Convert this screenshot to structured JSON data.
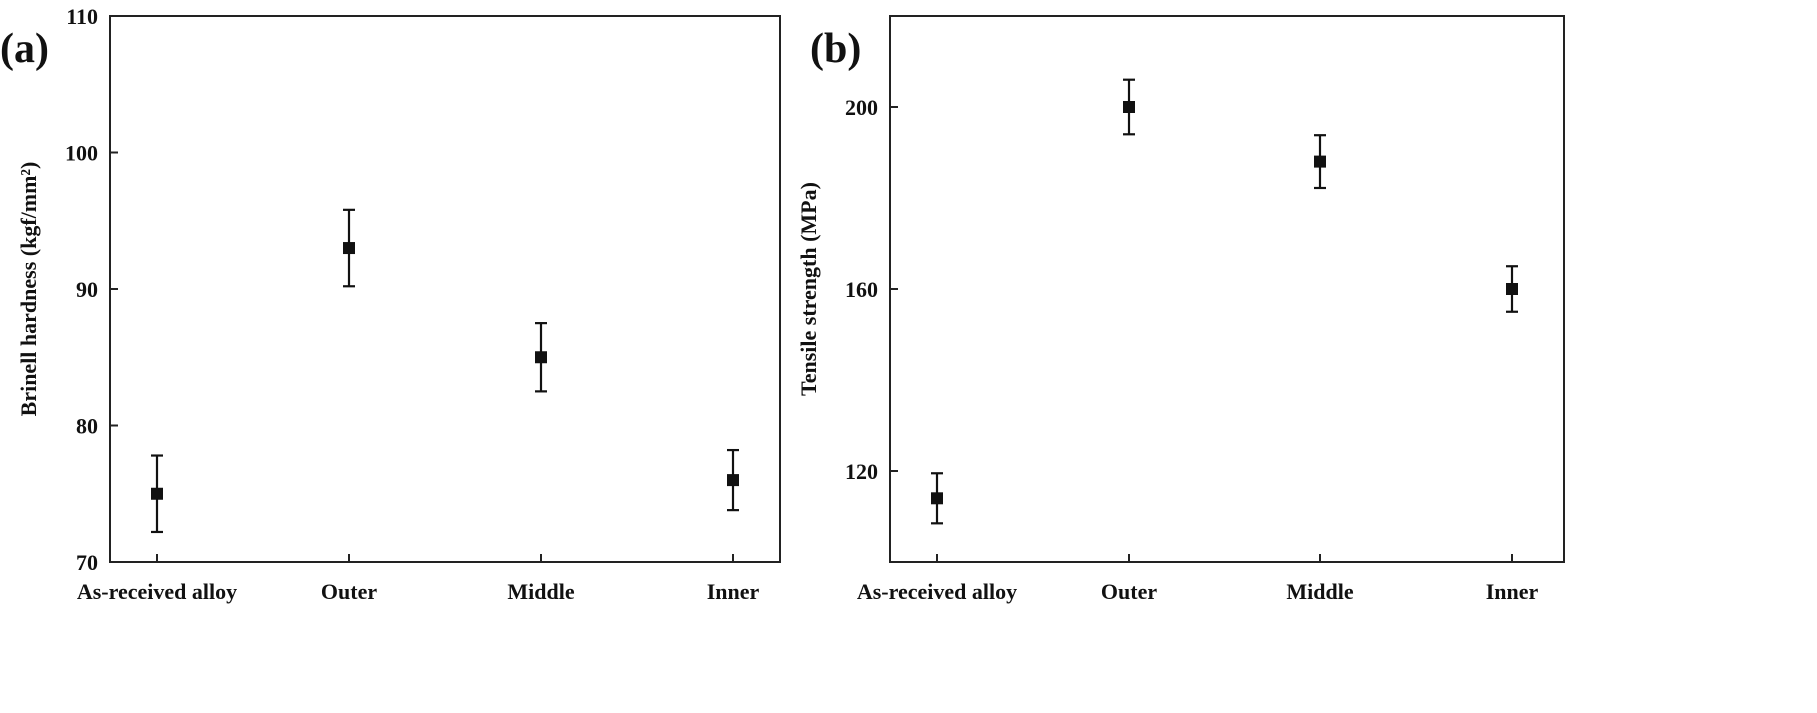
{
  "chart_data": [
    {
      "panel_label": "(a)",
      "type": "scatter",
      "categories": [
        "As-received alloy",
        "Outer",
        "Middle",
        "Inner"
      ],
      "values": [
        75,
        93,
        85,
        76
      ],
      "error": [
        2.8,
        2.8,
        2.5,
        2.2
      ],
      "ylabel": "Brinell hardness (kgf/mm²)",
      "ylim": [
        70,
        110
      ],
      "yticks": [
        70,
        80,
        90,
        100,
        110
      ],
      "grid": false,
      "marker": "square"
    },
    {
      "panel_label": "(b)",
      "type": "scatter",
      "categories": [
        "As-received alloy",
        "Outer",
        "Middle",
        "Inner"
      ],
      "values": [
        114,
        200,
        188,
        160
      ],
      "error": [
        5.5,
        6,
        5.8,
        5
      ],
      "ylabel": "Tensile strength (MPa)",
      "ylim": [
        100,
        220
      ],
      "yticks": [
        120,
        160,
        200
      ],
      "grid": false,
      "marker": "square"
    }
  ]
}
